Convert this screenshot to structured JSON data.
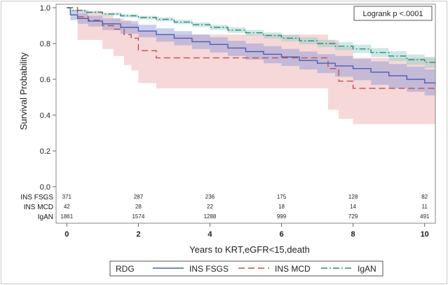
{
  "chart_data": {
    "type": "line",
    "title": "",
    "xlabel": "Years to KRT,eGFR<15,death",
    "ylabel": "Survival Probability",
    "xlim": [
      -0.3,
      10.3
    ],
    "ylim": [
      0.0,
      1.0
    ],
    "x_ticks": [
      0,
      2,
      4,
      6,
      8,
      10
    ],
    "y_ticks": [
      0.0,
      0.2,
      0.4,
      0.6,
      0.8,
      1.0
    ],
    "grid": false,
    "annotation": "Logrank p <.0001",
    "legend": {
      "title": "RDG",
      "position": "bottom",
      "entries": [
        "INS FSGS",
        "INS MCD",
        "IgAN"
      ]
    },
    "series": [
      {
        "name": "INS FSGS",
        "color": "#4a5fb5",
        "band_color": "#8a95d6",
        "dash": "solid",
        "x": [
          0,
          0.1,
          0.3,
          0.6,
          1,
          1.5,
          2,
          2.5,
          3,
          3.5,
          4,
          4.5,
          5,
          5.5,
          6,
          6.5,
          7,
          7.5,
          8,
          8.5,
          9,
          9.5,
          10,
          10.3
        ],
        "y": [
          1.0,
          0.96,
          0.94,
          0.925,
          0.91,
          0.89,
          0.87,
          0.85,
          0.83,
          0.81,
          0.795,
          0.775,
          0.755,
          0.74,
          0.725,
          0.705,
          0.69,
          0.675,
          0.66,
          0.64,
          0.62,
          0.6,
          0.58,
          0.57
        ],
        "lower": [
          1.0,
          0.93,
          0.91,
          0.895,
          0.875,
          0.855,
          0.835,
          0.81,
          0.79,
          0.77,
          0.75,
          0.73,
          0.71,
          0.69,
          0.675,
          0.655,
          0.635,
          0.615,
          0.595,
          0.57,
          0.55,
          0.53,
          0.51,
          0.5
        ],
        "upper": [
          1.0,
          0.985,
          0.97,
          0.955,
          0.94,
          0.925,
          0.905,
          0.885,
          0.87,
          0.85,
          0.835,
          0.815,
          0.8,
          0.785,
          0.77,
          0.755,
          0.74,
          0.73,
          0.715,
          0.7,
          0.685,
          0.67,
          0.655,
          0.645
        ]
      },
      {
        "name": "INS MCD",
        "color": "#c0504d",
        "band_color": "#e8a9a6",
        "dash": "long-dash",
        "x": [
          0,
          0.3,
          0.6,
          1,
          1.3,
          1.6,
          1.8,
          2,
          2.5,
          4,
          6,
          7.2,
          7.3,
          7.6,
          8,
          10,
          10.3
        ],
        "y": [
          1.0,
          0.95,
          0.93,
          0.9,
          0.88,
          0.85,
          0.83,
          0.76,
          0.72,
          0.72,
          0.72,
          0.72,
          0.66,
          0.59,
          0.55,
          0.55,
          0.55
        ],
        "lower": [
          1.0,
          0.82,
          0.82,
          0.77,
          0.73,
          0.68,
          0.65,
          0.58,
          0.55,
          0.55,
          0.55,
          0.55,
          0.43,
          0.38,
          0.35,
          0.35,
          0.35
        ],
        "upper": [
          1.0,
          0.99,
          0.98,
          0.96,
          0.94,
          0.93,
          0.91,
          0.87,
          0.85,
          0.85,
          0.85,
          0.85,
          0.82,
          0.78,
          0.72,
          0.72,
          0.72
        ]
      },
      {
        "name": "IgAN",
        "color": "#2a8c7a",
        "band_color": "#8fcfc3",
        "dash": "dash-dot",
        "x": [
          0,
          0.1,
          0.5,
          1,
          1.5,
          2,
          2.5,
          3,
          3.5,
          4,
          4.5,
          5,
          5.5,
          6,
          6.5,
          7,
          7.5,
          8,
          8.5,
          9,
          9.5,
          10,
          10.3
        ],
        "y": [
          1.0,
          0.985,
          0.975,
          0.965,
          0.955,
          0.945,
          0.935,
          0.92,
          0.905,
          0.89,
          0.875,
          0.86,
          0.845,
          0.83,
          0.815,
          0.8,
          0.785,
          0.77,
          0.75,
          0.73,
          0.71,
          0.695,
          0.685
        ],
        "lower": [
          1.0,
          0.98,
          0.968,
          0.957,
          0.946,
          0.935,
          0.924,
          0.908,
          0.892,
          0.876,
          0.86,
          0.844,
          0.828,
          0.812,
          0.796,
          0.78,
          0.763,
          0.747,
          0.725,
          0.703,
          0.681,
          0.664,
          0.652
        ],
        "upper": [
          1.0,
          0.99,
          0.982,
          0.973,
          0.964,
          0.955,
          0.946,
          0.932,
          0.918,
          0.904,
          0.89,
          0.876,
          0.862,
          0.848,
          0.834,
          0.82,
          0.807,
          0.793,
          0.775,
          0.757,
          0.739,
          0.726,
          0.718
        ]
      }
    ],
    "risk_table": {
      "times": [
        0,
        2,
        4,
        6,
        8,
        10
      ],
      "rows": [
        {
          "label": "INS FSGS",
          "values": [
            "371",
            "287",
            "236",
            "175",
            "128",
            "82"
          ]
        },
        {
          "label": "INS MCD",
          "values": [
            "42",
            "28",
            "22",
            "18",
            "14",
            "11"
          ]
        },
        {
          "label": "IgAN",
          "values": [
            "1861",
            "1574",
            "1288",
            "999",
            "729",
            "491"
          ]
        }
      ]
    }
  }
}
